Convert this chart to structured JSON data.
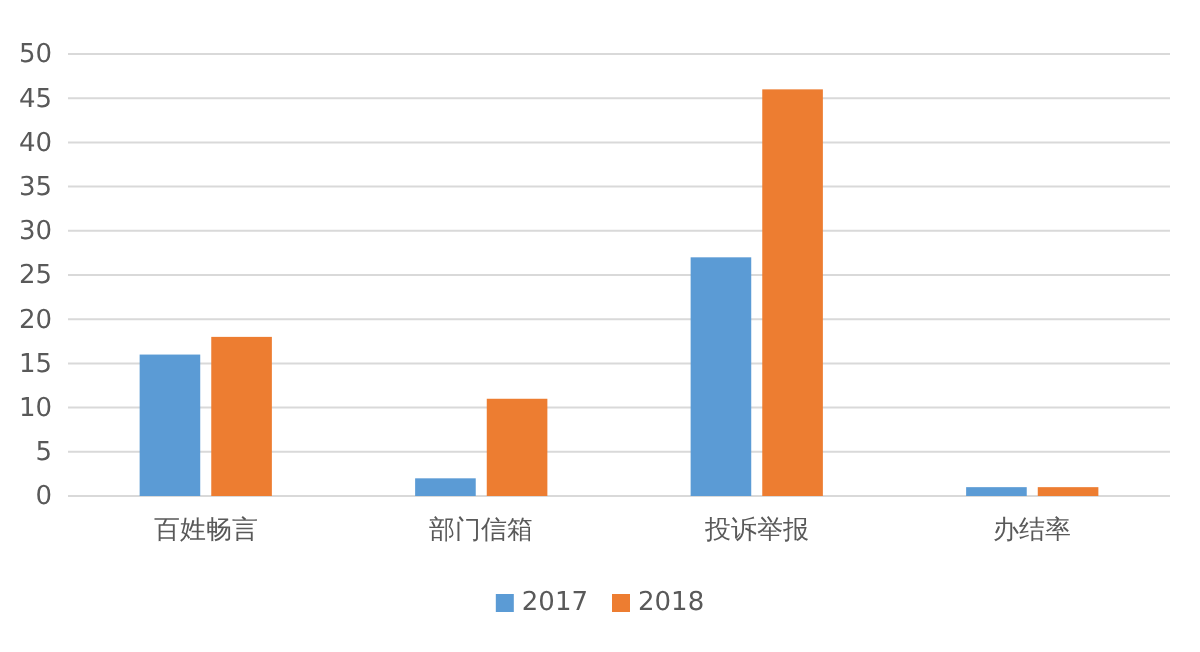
{
  "chart_data": {
    "type": "bar",
    "categories": [
      "百姓畅言",
      "部门信箱",
      "投诉举报",
      "办结率"
    ],
    "series": [
      {
        "name": "2017",
        "color": "#5b9bd5",
        "values": [
          16,
          2,
          27,
          1
        ]
      },
      {
        "name": "2018",
        "color": "#ed7d31",
        "values": [
          18,
          11,
          46,
          1
        ]
      }
    ],
    "ylim": [
      0,
      50
    ],
    "yticks": [
      0,
      5,
      10,
      15,
      20,
      25,
      30,
      35,
      40,
      45,
      50
    ],
    "grid": "y",
    "legend": "bottom"
  }
}
